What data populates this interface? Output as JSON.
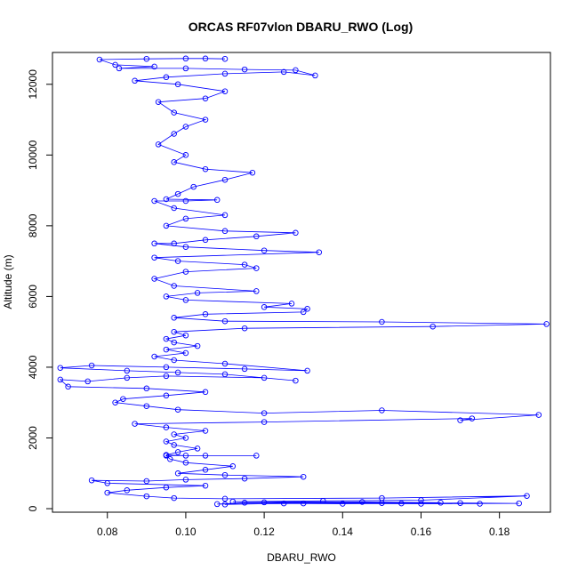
{
  "chart_data": {
    "type": "line",
    "title": "ORCAS RF07vlon DBARU_RWO (Log)",
    "xlabel": "DBARU_RWO",
    "ylabel": "Altitude (m)",
    "xlim": [
      0.066,
      0.193
    ],
    "ylim": [
      -100,
      12900
    ],
    "x_ticks": [
      0.08,
      0.1,
      0.12,
      0.14,
      0.16,
      0.18
    ],
    "x_tick_labels": [
      "0.08",
      "0.10",
      "0.12",
      "0.14",
      "0.16",
      "0.18"
    ],
    "y_ticks": [
      0,
      2000,
      4000,
      6000,
      8000,
      10000,
      12000
    ],
    "y_tick_labels": [
      "0",
      "2000",
      "4000",
      "6000",
      "8000",
      "10000",
      "12000"
    ],
    "grid": false,
    "markers": "open-circle",
    "colors": {
      "series": "#0000ff",
      "frame": "#000000"
    },
    "series": [
      {
        "points": [
          [
            0.11,
            120
          ],
          [
            0.125,
            150
          ],
          [
            0.14,
            140
          ],
          [
            0.155,
            150
          ],
          [
            0.17,
            160
          ],
          [
            0.185,
            150
          ],
          [
            0.16,
            140
          ],
          [
            0.13,
            150
          ],
          [
            0.108,
            130
          ],
          [
            0.115,
            170
          ],
          [
            0.15,
            160
          ],
          [
            0.175,
            140
          ],
          [
            0.12,
            180
          ],
          [
            0.145,
            190
          ],
          [
            0.165,
            170
          ],
          [
            0.112,
            200
          ],
          [
            0.135,
            220
          ],
          [
            0.16,
            240
          ],
          [
            0.187,
            360
          ],
          [
            0.15,
            300
          ],
          [
            0.11,
            280
          ],
          [
            0.097,
            300
          ],
          [
            0.09,
            350
          ],
          [
            0.08,
            450
          ],
          [
            0.085,
            520
          ],
          [
            0.095,
            600
          ],
          [
            0.105,
            650
          ],
          [
            0.08,
            720
          ],
          [
            0.076,
            800
          ],
          [
            0.09,
            780
          ],
          [
            0.1,
            820
          ],
          [
            0.115,
            850
          ],
          [
            0.13,
            900
          ],
          [
            0.11,
            950
          ],
          [
            0.098,
            1000
          ],
          [
            0.105,
            1100
          ],
          [
            0.112,
            1200
          ],
          [
            0.1,
            1300
          ],
          [
            0.096,
            1400
          ],
          [
            0.095,
            1500
          ],
          [
            0.105,
            1500
          ],
          [
            0.118,
            1500
          ],
          [
            0.1,
            1500
          ],
          [
            0.095,
            1520
          ],
          [
            0.098,
            1600
          ],
          [
            0.103,
            1700
          ],
          [
            0.097,
            1800
          ],
          [
            0.095,
            1900
          ],
          [
            0.1,
            2000
          ],
          [
            0.097,
            2100
          ],
          [
            0.105,
            2200
          ],
          [
            0.095,
            2300
          ],
          [
            0.087,
            2400
          ],
          [
            0.12,
            2450
          ],
          [
            0.173,
            2550
          ],
          [
            0.17,
            2500
          ],
          [
            0.19,
            2650
          ],
          [
            0.15,
            2780
          ],
          [
            0.12,
            2700
          ],
          [
            0.098,
            2800
          ],
          [
            0.09,
            2900
          ],
          [
            0.082,
            3000
          ],
          [
            0.084,
            3100
          ],
          [
            0.095,
            3200
          ],
          [
            0.105,
            3300
          ],
          [
            0.09,
            3400
          ],
          [
            0.07,
            3450
          ],
          [
            0.068,
            3650
          ],
          [
            0.075,
            3600
          ],
          [
            0.085,
            3700
          ],
          [
            0.095,
            3750
          ],
          [
            0.12,
            3700
          ],
          [
            0.128,
            3620
          ],
          [
            0.11,
            3800
          ],
          [
            0.098,
            3850
          ],
          [
            0.085,
            3900
          ],
          [
            0.068,
            3980
          ],
          [
            0.076,
            4050
          ],
          [
            0.095,
            4000
          ],
          [
            0.115,
            3950
          ],
          [
            0.131,
            3900
          ],
          [
            0.11,
            4100
          ],
          [
            0.097,
            4200
          ],
          [
            0.092,
            4300
          ],
          [
            0.1,
            4400
          ],
          [
            0.095,
            4500
          ],
          [
            0.103,
            4600
          ],
          [
            0.097,
            4700
          ],
          [
            0.095,
            4800
          ],
          [
            0.1,
            4900
          ],
          [
            0.097,
            5000
          ],
          [
            0.115,
            5100
          ],
          [
            0.163,
            5150
          ],
          [
            0.192,
            5220
          ],
          [
            0.15,
            5280
          ],
          [
            0.11,
            5300
          ],
          [
            0.097,
            5400
          ],
          [
            0.105,
            5500
          ],
          [
            0.13,
            5560
          ],
          [
            0.131,
            5650
          ],
          [
            0.12,
            5700
          ],
          [
            0.127,
            5800
          ],
          [
            0.1,
            5900
          ],
          [
            0.095,
            6000
          ],
          [
            0.103,
            6100
          ],
          [
            0.118,
            6150
          ],
          [
            0.097,
            6300
          ],
          [
            0.092,
            6500
          ],
          [
            0.1,
            6700
          ],
          [
            0.118,
            6800
          ],
          [
            0.115,
            6900
          ],
          [
            0.098,
            7000
          ],
          [
            0.092,
            7100
          ],
          [
            0.134,
            7250
          ],
          [
            0.12,
            7300
          ],
          [
            0.1,
            7400
          ],
          [
            0.092,
            7500
          ],
          [
            0.097,
            7500
          ],
          [
            0.105,
            7600
          ],
          [
            0.118,
            7700
          ],
          [
            0.128,
            7800
          ],
          [
            0.11,
            7850
          ],
          [
            0.095,
            8000
          ],
          [
            0.1,
            8200
          ],
          [
            0.11,
            8300
          ],
          [
            0.097,
            8500
          ],
          [
            0.092,
            8700
          ],
          [
            0.1,
            8700
          ],
          [
            0.108,
            8730
          ],
          [
            0.095,
            8750
          ],
          [
            0.098,
            8900
          ],
          [
            0.102,
            9100
          ],
          [
            0.11,
            9300
          ],
          [
            0.117,
            9500
          ],
          [
            0.105,
            9600
          ],
          [
            0.097,
            9800
          ],
          [
            0.1,
            10000
          ],
          [
            0.093,
            10300
          ],
          [
            0.097,
            10600
          ],
          [
            0.1,
            10800
          ],
          [
            0.105,
            11000
          ],
          [
            0.097,
            11200
          ],
          [
            0.093,
            11500
          ],
          [
            0.105,
            11600
          ],
          [
            0.11,
            11800
          ],
          [
            0.098,
            12000
          ],
          [
            0.087,
            12100
          ],
          [
            0.095,
            12200
          ],
          [
            0.11,
            12300
          ],
          [
            0.125,
            12350
          ],
          [
            0.133,
            12250
          ],
          [
            0.128,
            12400
          ],
          [
            0.115,
            12420
          ],
          [
            0.1,
            12450
          ],
          [
            0.083,
            12450
          ],
          [
            0.092,
            12500
          ],
          [
            0.082,
            12550
          ],
          [
            0.078,
            12700
          ],
          [
            0.09,
            12720
          ],
          [
            0.1,
            12730
          ],
          [
            0.105,
            12730
          ],
          [
            0.11,
            12720
          ]
        ]
      }
    ]
  }
}
